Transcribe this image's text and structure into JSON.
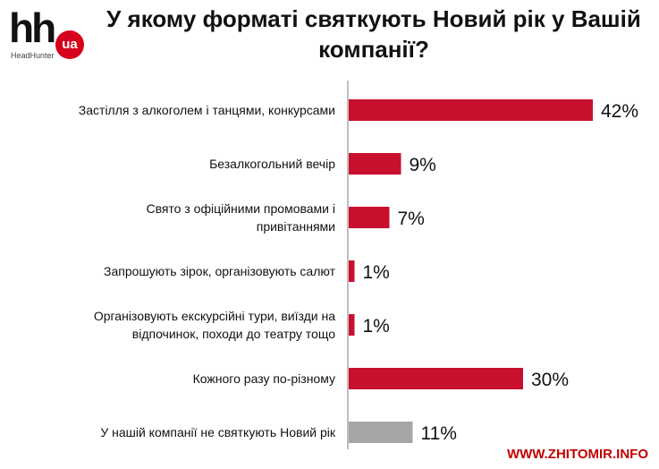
{
  "logo": {
    "brand": "hh",
    "badge": "ua",
    "subtitle": "HeadHunter"
  },
  "watermark": "WWW.ZHITOMIR.INFO",
  "colors": {
    "primary_bar": "#c8102e",
    "secondary_bar": "#a6a6a6",
    "logo_badge": "#d6001c",
    "watermark": "#c00000"
  },
  "chart_data": {
    "type": "bar",
    "orientation": "horizontal",
    "title": "У якому форматі святкують Новий рік у Вашій компанії?",
    "categories": [
      [
        "Застілля з алкоголем і танцями, конкурсами"
      ],
      [
        "Безалкогольний вечір"
      ],
      [
        "Свято з офіційними промовами і",
        "привітаннями"
      ],
      [
        "Запрошують зірок, організовують салют"
      ],
      [
        "Організовують екскурсійні тури, виїзди на",
        "відпочинок, походи до театру тощо"
      ],
      [
        "Кожного разу по-різному"
      ],
      [
        "У нашій компанії не святкують Новий рік"
      ]
    ],
    "values": [
      42,
      9,
      7,
      1,
      1,
      30,
      11
    ],
    "value_labels": [
      "42%",
      "9%",
      "7%",
      "1%",
      "1%",
      "30%",
      "11%"
    ],
    "bar_colors": [
      "#c8102e",
      "#c8102e",
      "#c8102e",
      "#c8102e",
      "#c8102e",
      "#c8102e",
      "#a6a6a6"
    ],
    "xlim": [
      0,
      42
    ],
    "xlabel": "",
    "ylabel": "",
    "grid": false,
    "legend": "none"
  }
}
